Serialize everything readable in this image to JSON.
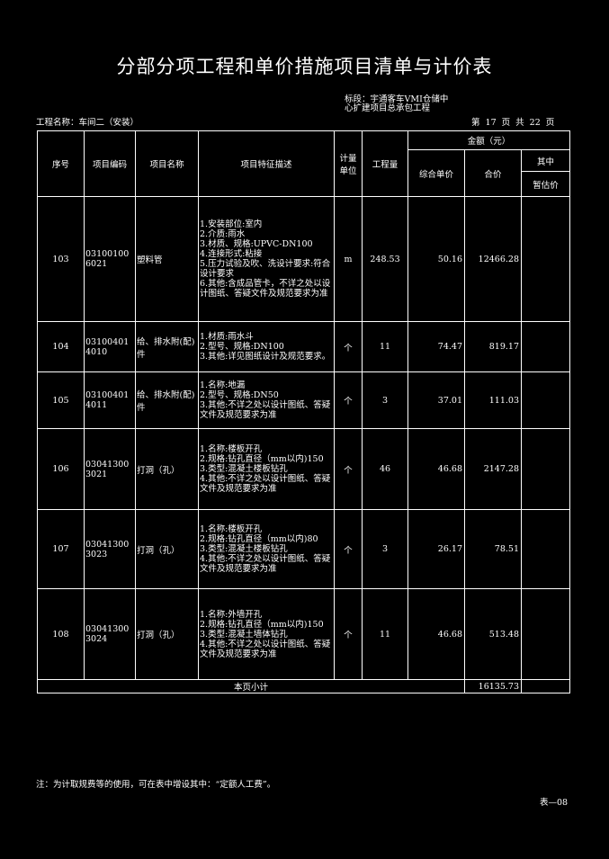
{
  "title": "分部分项工程和单价措施项目清单与计价表",
  "section": "标段：宇通客车VMI仓储中心扩建项目总承包工程",
  "project": "工程名称：车间二（安装）",
  "pages": "第 17 页  共 22 页",
  "headers": {
    "seq": "序号",
    "code": "项目编码",
    "name": "项目名称",
    "desc": "项目特征描述",
    "unit": "计量单位",
    "qty": "工程量",
    "amount": "金额（元）",
    "unit_price": "综合单价",
    "total": "合价",
    "of_which": "其中",
    "provisional": "暂估价"
  },
  "rows": [
    {
      "seq": "103",
      "code": "031001006021",
      "name": "塑料管",
      "desc": "1.安装部位:室内\n2.介质:雨水\n3.材质、规格:UPVC-DN100\n4.连接形式:粘接\n5.压力试验及吹、洗设计要求:符合设计要求\n6.其他:含成品管卡，不详之处以设计图纸、答疑文件及规范要求为准",
      "unit": "m",
      "qty": "248.53",
      "unit_price": "50.16",
      "total": "12466.28",
      "provisional": ""
    },
    {
      "seq": "104",
      "code": "031004014010",
      "name": "给、排水附(配)件",
      "desc": "1.材质:雨水斗\n2.型号、规格:DN100\n3.其他:详见图纸设计及规范要求。",
      "unit": "个",
      "qty": "11",
      "unit_price": "74.47",
      "total": "819.17",
      "provisional": ""
    },
    {
      "seq": "105",
      "code": "031004014011",
      "name": "给、排水附(配)件",
      "desc": "1.名称:地漏\n2.型号、规格:DN50\n3.其他:不详之处以设计图纸、答疑文件及规范要求为准",
      "unit": "个",
      "qty": "3",
      "unit_price": "37.01",
      "total": "111.03",
      "provisional": ""
    },
    {
      "seq": "106",
      "code": "030413003021",
      "name": "打洞（孔）",
      "desc": "1.名称:楼板开孔\n2.规格:钻孔直径（mm以内)150\n3.类型:混凝土楼板钻孔\n4.其他:不详之处以设计图纸、答疑文件及规范要求为准",
      "unit": "个",
      "qty": "46",
      "unit_price": "46.68",
      "total": "2147.28",
      "provisional": ""
    },
    {
      "seq": "107",
      "code": "030413003023",
      "name": "打洞（孔）",
      "desc": "1.名称:楼板开孔\n2.规格:钻孔直径（mm以内)80\n3.类型:混凝土楼板钻孔\n4.其他:不详之处以设计图纸、答疑文件及规范要求为准",
      "unit": "个",
      "qty": "3",
      "unit_price": "26.17",
      "total": "78.51",
      "provisional": ""
    },
    {
      "seq": "108",
      "code": "030413003024",
      "name": "打洞（孔）",
      "desc": "1.名称:外墙开孔\n2.规格:钻孔直径（mm以内)150\n3.类型:混凝土墙体钻孔\n4.其他:不详之处以设计图纸、答疑文件及规范要求为准",
      "unit": "个",
      "qty": "11",
      "unit_price": "46.68",
      "total": "513.48",
      "provisional": ""
    }
  ],
  "subtotal": {
    "label": "本页小计",
    "total": "16135.73"
  },
  "note": "注：为计取规费等的使用，可在表中增设其中：“定额人工费”。",
  "form_no": "表—08"
}
